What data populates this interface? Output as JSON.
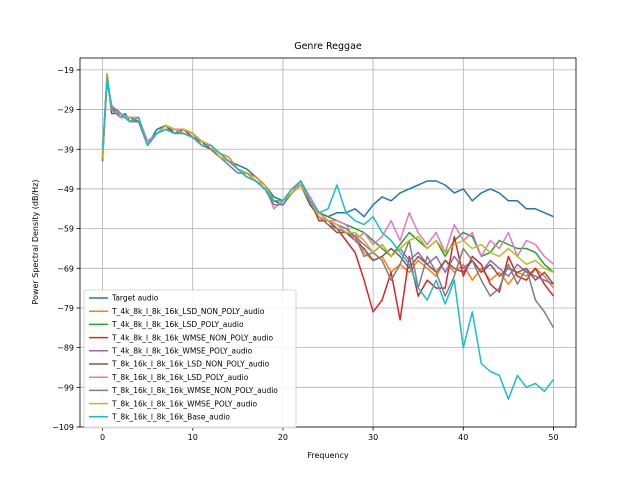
{
  "chart_data": {
    "type": "line",
    "title": "Genre Reggae",
    "xlabel": "Frequency",
    "ylabel": "Power Spectral Density (dB/Hz)",
    "xlim": [
      -2.5,
      52.5
    ],
    "ylim": [
      -109,
      -16
    ],
    "xticks": [
      0,
      10,
      20,
      30,
      40,
      50
    ],
    "yticks": [
      -19,
      -29,
      -39,
      -49,
      -59,
      -69,
      -79,
      -89,
      -99,
      -109
    ],
    "grid": true,
    "legend_position": "lower-left",
    "series": [
      {
        "name": "Target audio",
        "color": "#1f77b4",
        "x": [
          0,
          0.5,
          1,
          1.5,
          2,
          2.5,
          3,
          4,
          5,
          6,
          7,
          8,
          9,
          10,
          11,
          12,
          13,
          14,
          15,
          16,
          17,
          18,
          19,
          20,
          21,
          22,
          23,
          24,
          25,
          26,
          27,
          28,
          29,
          30,
          31,
          32,
          33,
          34,
          35,
          36,
          37,
          38,
          39,
          40,
          41,
          42,
          43,
          44,
          45,
          46,
          47,
          48,
          49,
          50
        ],
        "y": [
          -40,
          -22,
          -28,
          -29,
          -31,
          -30,
          -32,
          -31,
          -38,
          -34,
          -33,
          -35,
          -34,
          -35,
          -37,
          -38,
          -40,
          -42,
          -43,
          -44,
          -46,
          -48,
          -51,
          -52,
          -49,
          -47,
          -52,
          -55,
          -56,
          -55,
          -55,
          -54,
          -56,
          -53,
          -51,
          -52,
          -50,
          -49,
          -48,
          -47,
          -47,
          -48,
          -50,
          -49,
          -52,
          -50,
          -49,
          -50,
          -52,
          -52,
          -54,
          -54,
          -55,
          -56
        ]
      },
      {
        "name": "T_4k_8k_l_8k_16k_LSD_NON_POLY_audio",
        "color": "#ff7f0e",
        "x": [
          0,
          0.5,
          1,
          1.5,
          2,
          2.5,
          3,
          4,
          5,
          6,
          7,
          8,
          9,
          10,
          11,
          12,
          13,
          14,
          15,
          16,
          17,
          18,
          19,
          20,
          21,
          22,
          23,
          24,
          25,
          26,
          27,
          28,
          29,
          30,
          31,
          32,
          33,
          34,
          35,
          36,
          37,
          38,
          39,
          40,
          41,
          42,
          43,
          44,
          45,
          46,
          47,
          48,
          49,
          50
        ],
        "y": [
          -41,
          -21,
          -28,
          -29,
          -30,
          -31,
          -31,
          -31,
          -38,
          -35,
          -33,
          -34,
          -34,
          -35,
          -38,
          -38,
          -40,
          -41,
          -44,
          -45,
          -46,
          -48,
          -52,
          -52,
          -49,
          -48,
          -53,
          -55,
          -57,
          -58,
          -60,
          -60,
          -65,
          -67,
          -66,
          -70,
          -68,
          -70,
          -67,
          -69,
          -71,
          -67,
          -70,
          -68,
          -72,
          -69,
          -72,
          -70,
          -73,
          -70,
          -71,
          -69,
          -71,
          -74
        ]
      },
      {
        "name": "T_4k_8k_l_8k_16k_LSD_POLY_audio",
        "color": "#2ca02c",
        "x": [
          0,
          0.5,
          1,
          1.5,
          2,
          2.5,
          3,
          4,
          5,
          6,
          7,
          8,
          9,
          10,
          11,
          12,
          13,
          14,
          15,
          16,
          17,
          18,
          19,
          20,
          21,
          22,
          23,
          24,
          25,
          26,
          27,
          28,
          29,
          30,
          31,
          32,
          33,
          34,
          35,
          36,
          37,
          38,
          39,
          40,
          41,
          42,
          43,
          44,
          45,
          46,
          47,
          48,
          49,
          50
        ],
        "y": [
          -42,
          -20,
          -29,
          -30,
          -30,
          -31,
          -32,
          -32,
          -37,
          -35,
          -34,
          -35,
          -35,
          -36,
          -37,
          -39,
          -41,
          -42,
          -44,
          -45,
          -47,
          -49,
          -51,
          -52,
          -50,
          -48,
          -51,
          -55,
          -56,
          -57,
          -58,
          -59,
          -60,
          -62,
          -64,
          -66,
          -63,
          -60,
          -62,
          -64,
          -62,
          -66,
          -62,
          -60,
          -61,
          -66,
          -65,
          -62,
          -63,
          -64,
          -64,
          -65,
          -68,
          -70
        ]
      },
      {
        "name": "T_4k_8k_l_8k_16k_WMSE_NON_POLY_audio",
        "color": "#d62728",
        "x": [
          0,
          0.5,
          1,
          1.5,
          2,
          2.5,
          3,
          4,
          5,
          6,
          7,
          8,
          9,
          10,
          11,
          12,
          13,
          14,
          15,
          16,
          17,
          18,
          19,
          20,
          21,
          22,
          23,
          24,
          25,
          26,
          27,
          28,
          29,
          30,
          31,
          32,
          33,
          34,
          35,
          36,
          37,
          38,
          39,
          40,
          41,
          42,
          43,
          44,
          45,
          46,
          47,
          48,
          49,
          50
        ],
        "y": [
          -41,
          -20,
          -30,
          -30,
          -31,
          -31,
          -32,
          -32,
          -38,
          -35,
          -33,
          -34,
          -34,
          -36,
          -37,
          -39,
          -41,
          -42,
          -44,
          -46,
          -47,
          -49,
          -53,
          -53,
          -50,
          -47,
          -52,
          -57,
          -57,
          -59,
          -62,
          -65,
          -72,
          -80,
          -77,
          -70,
          -82,
          -66,
          -76,
          -72,
          -74,
          -74,
          -61,
          -71,
          -66,
          -68,
          -73,
          -75,
          -66,
          -71,
          -72,
          -69,
          -73,
          -76
        ]
      },
      {
        "name": "T_4k_8k_l_8k_16k_WMSE_POLY_audio",
        "color": "#9467bd",
        "x": [
          0,
          0.5,
          1,
          1.5,
          2,
          2.5,
          3,
          4,
          5,
          6,
          7,
          8,
          9,
          10,
          11,
          12,
          13,
          14,
          15,
          16,
          17,
          18,
          19,
          20,
          21,
          22,
          23,
          24,
          25,
          26,
          27,
          28,
          29,
          30,
          31,
          32,
          33,
          34,
          35,
          36,
          37,
          38,
          39,
          40,
          41,
          42,
          43,
          44,
          45,
          46,
          47,
          48,
          49,
          50
        ],
        "y": [
          -42,
          -21,
          -29,
          -29,
          -30,
          -31,
          -31,
          -31,
          -38,
          -35,
          -34,
          -34,
          -35,
          -36,
          -37,
          -38,
          -41,
          -43,
          -45,
          -45,
          -47,
          -49,
          -52,
          -53,
          -50,
          -48,
          -52,
          -56,
          -57,
          -58,
          -59,
          -61,
          -63,
          -65,
          -63,
          -66,
          -64,
          -67,
          -65,
          -68,
          -66,
          -70,
          -66,
          -69,
          -67,
          -70,
          -67,
          -69,
          -71,
          -68,
          -70,
          -71,
          -72,
          -73
        ]
      },
      {
        "name": "T_8k_16k_l_8k_16k_LSD_NON_POLY_audio",
        "color": "#8c564b",
        "x": [
          0,
          0.5,
          1,
          1.5,
          2,
          2.5,
          3,
          4,
          5,
          6,
          7,
          8,
          9,
          10,
          11,
          12,
          13,
          14,
          15,
          16,
          17,
          18,
          19,
          20,
          21,
          22,
          23,
          24,
          25,
          26,
          27,
          28,
          29,
          30,
          31,
          32,
          33,
          34,
          35,
          36,
          37,
          38,
          39,
          40,
          41,
          42,
          43,
          44,
          45,
          46,
          47,
          48,
          49,
          50
        ],
        "y": [
          -41,
          -21,
          -28,
          -30,
          -30,
          -31,
          -31,
          -32,
          -38,
          -35,
          -33,
          -35,
          -34,
          -35,
          -37,
          -39,
          -41,
          -42,
          -44,
          -45,
          -47,
          -49,
          -52,
          -53,
          -50,
          -48,
          -53,
          -56,
          -58,
          -60,
          -60,
          -62,
          -64,
          -67,
          -66,
          -64,
          -66,
          -69,
          -66,
          -68,
          -70,
          -67,
          -69,
          -70,
          -67,
          -70,
          -68,
          -71,
          -69,
          -70,
          -69,
          -72,
          -70,
          -73
        ]
      },
      {
        "name": "T_8k_16k_l_8k_16k_LSD_POLY_audio",
        "color": "#e377c2",
        "x": [
          0,
          0.5,
          1,
          1.5,
          2,
          2.5,
          3,
          4,
          5,
          6,
          7,
          8,
          9,
          10,
          11,
          12,
          13,
          14,
          15,
          16,
          17,
          18,
          19,
          20,
          21,
          22,
          23,
          24,
          25,
          26,
          27,
          28,
          29,
          30,
          31,
          32,
          33,
          34,
          35,
          36,
          37,
          38,
          39,
          40,
          41,
          42,
          43,
          44,
          45,
          46,
          47,
          48,
          49,
          50
        ],
        "y": [
          -41,
          -21,
          -28,
          -29,
          -31,
          -31,
          -32,
          -31,
          -37,
          -35,
          -33,
          -34,
          -35,
          -36,
          -38,
          -38,
          -41,
          -42,
          -44,
          -46,
          -47,
          -48,
          -54,
          -52,
          -50,
          -47,
          -51,
          -55,
          -57,
          -57,
          -58,
          -62,
          -60,
          -63,
          -61,
          -57,
          -62,
          -55,
          -60,
          -63,
          -60,
          -65,
          -58,
          -62,
          -60,
          -66,
          -62,
          -64,
          -60,
          -66,
          -62,
          -63,
          -66,
          -68
        ]
      },
      {
        "name": "T_8k_16k_l_8k_16k_WMSE_NON_POLY_audio",
        "color": "#7f7f7f",
        "x": [
          0,
          0.5,
          1,
          1.5,
          2,
          2.5,
          3,
          4,
          5,
          6,
          7,
          8,
          9,
          10,
          11,
          12,
          13,
          14,
          15,
          16,
          17,
          18,
          19,
          20,
          21,
          22,
          23,
          24,
          25,
          26,
          27,
          28,
          29,
          30,
          31,
          32,
          33,
          34,
          35,
          36,
          37,
          38,
          39,
          40,
          41,
          42,
          43,
          44,
          45,
          46,
          47,
          48,
          49,
          50
        ],
        "y": [
          -42,
          -21,
          -29,
          -29,
          -30,
          -31,
          -32,
          -32,
          -38,
          -35,
          -34,
          -35,
          -35,
          -36,
          -38,
          -39,
          -41,
          -42,
          -44,
          -46,
          -47,
          -49,
          -53,
          -53,
          -50,
          -48,
          -52,
          -56,
          -58,
          -59,
          -60,
          -61,
          -66,
          -65,
          -67,
          -72,
          -68,
          -62,
          -74,
          -66,
          -70,
          -76,
          -71,
          -64,
          -67,
          -72,
          -76,
          -74,
          -68,
          -73,
          -69,
          -77,
          -80,
          -84
        ]
      },
      {
        "name": "T_8k_16k_l_8k_16k_WMSE_POLY_audio",
        "color": "#bcbd22",
        "x": [
          0,
          0.5,
          1,
          1.5,
          2,
          2.5,
          3,
          4,
          5,
          6,
          7,
          8,
          9,
          10,
          11,
          12,
          13,
          14,
          15,
          16,
          17,
          18,
          19,
          20,
          21,
          22,
          23,
          24,
          25,
          26,
          27,
          28,
          29,
          30,
          31,
          32,
          33,
          34,
          35,
          36,
          37,
          38,
          39,
          40,
          41,
          42,
          43,
          44,
          45,
          46,
          47,
          48,
          49,
          50
        ],
        "y": [
          -41,
          -20,
          -29,
          -30,
          -30,
          -31,
          -31,
          -31,
          -38,
          -35,
          -33,
          -34,
          -34,
          -35,
          -37,
          -38,
          -41,
          -42,
          -44,
          -45,
          -47,
          -48,
          -52,
          -52,
          -50,
          -48,
          -52,
          -56,
          -57,
          -58,
          -60,
          -60,
          -62,
          -65,
          -63,
          -66,
          -64,
          -62,
          -61,
          -64,
          -62,
          -65,
          -63,
          -62,
          -64,
          -63,
          -65,
          -66,
          -64,
          -66,
          -68,
          -67,
          -69,
          -70
        ]
      },
      {
        "name": "T_8k_16k_l_8k_16k_Base_audio",
        "color": "#17becf",
        "x": [
          0,
          0.5,
          1,
          1.5,
          2,
          2.5,
          3,
          4,
          5,
          6,
          7,
          8,
          9,
          10,
          11,
          12,
          13,
          14,
          15,
          16,
          17,
          18,
          19,
          20,
          21,
          22,
          23,
          24,
          25,
          26,
          27,
          28,
          29,
          30,
          31,
          32,
          33,
          34,
          35,
          36,
          37,
          38,
          39,
          40,
          41,
          42,
          43,
          44,
          45,
          46,
          47,
          48,
          49,
          50
        ],
        "y": [
          -39,
          -21,
          -29,
          -30,
          -30,
          -31,
          -32,
          -31,
          -38,
          -35,
          -34,
          -35,
          -35,
          -36,
          -38,
          -38,
          -40,
          -42,
          -44,
          -46,
          -47,
          -49,
          -52,
          -52,
          -49,
          -47,
          -52,
          -55,
          -54,
          -48,
          -55,
          -57,
          -58,
          -56,
          -60,
          -62,
          -65,
          -68,
          -74,
          -77,
          -72,
          -78,
          -72,
          -89,
          -80,
          -93,
          -95,
          -96,
          -102,
          -96,
          -99,
          -98,
          -100,
          -97
        ]
      }
    ]
  }
}
